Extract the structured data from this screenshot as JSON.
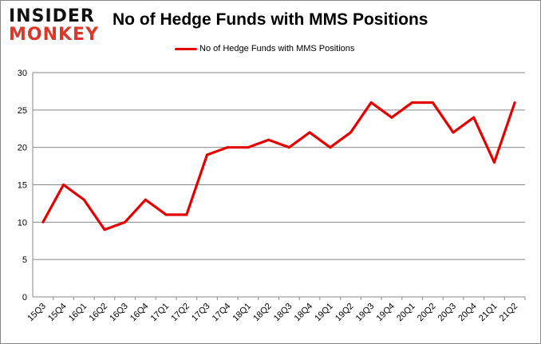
{
  "logo": {
    "line1": "INSIDER",
    "line2": "MONKEY"
  },
  "chart_data": {
    "type": "line",
    "title": "No of Hedge Funds with MMS Positions",
    "xlabel": "",
    "ylabel": "",
    "categories": [
      "15Q3",
      "15Q4",
      "16Q1",
      "16Q2",
      "16Q3",
      "16Q4",
      "17Q1",
      "17Q2",
      "17Q3",
      "17Q4",
      "18Q1",
      "18Q2",
      "18Q3",
      "18Q4",
      "19Q1",
      "19Q2",
      "19Q3",
      "19Q4",
      "20Q1",
      "20Q2",
      "20Q3",
      "20Q4",
      "21Q1",
      "21Q2"
    ],
    "series": [
      {
        "name": "No of Hedge Funds with MMS Positions",
        "color": "#e50000",
        "values": [
          10,
          15,
          13,
          9,
          10,
          13,
          11,
          11,
          19,
          20,
          20,
          21,
          20,
          22,
          20,
          22,
          26,
          24,
          26,
          26,
          22,
          24,
          18,
          26
        ]
      }
    ],
    "ylim": [
      0,
      30
    ],
    "yticks": [
      0,
      5,
      10,
      15,
      20,
      25,
      30
    ],
    "grid": true,
    "legend": "top-center"
  }
}
